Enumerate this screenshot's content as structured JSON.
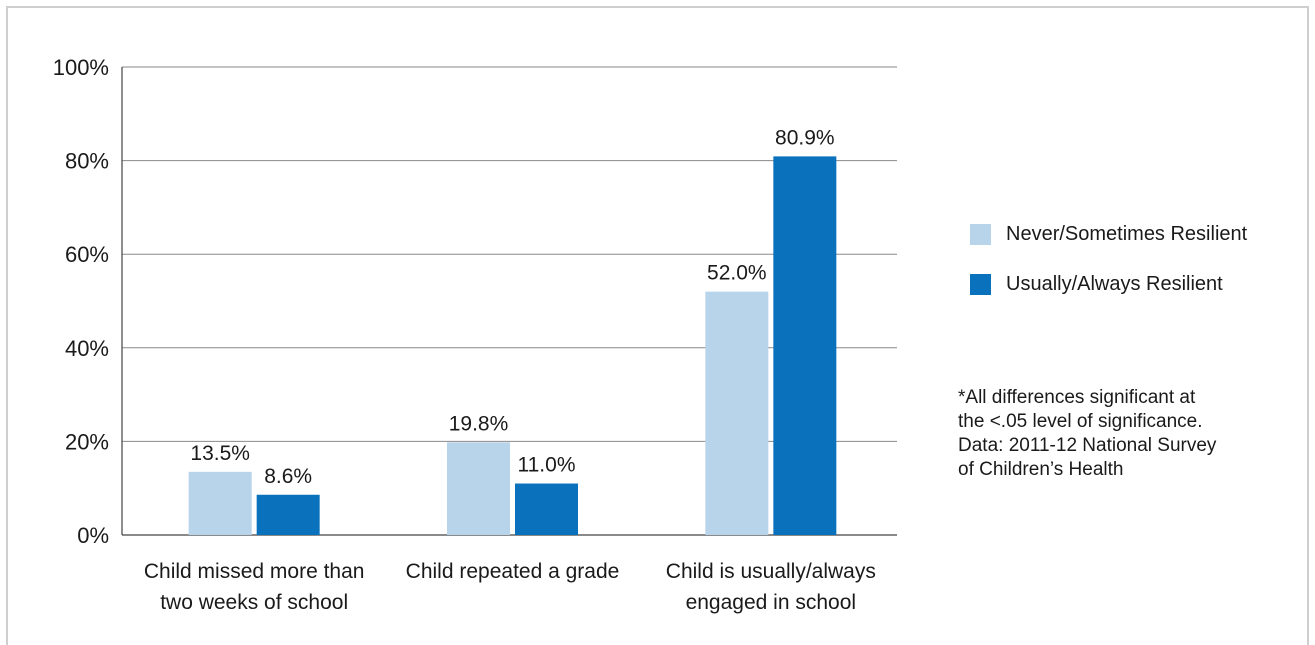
{
  "chart_data": {
    "type": "bar",
    "categories": [
      [
        "Child missed more than",
        "two weeks of school"
      ],
      [
        "Child repeated a grade"
      ],
      [
        "Child is usually/always",
        "engaged in school"
      ]
    ],
    "series": [
      {
        "name": "Never/Sometimes Resilient",
        "values": [
          13.5,
          19.8,
          52.0
        ],
        "labels": [
          "13.5%",
          "19.8%",
          "52.0%"
        ],
        "color": "#b8d4ea"
      },
      {
        "name": "Usually/Always Resilient",
        "values": [
          8.6,
          11.0,
          80.9
        ],
        "labels": [
          "8.6%",
          "11.0%",
          "80.9%"
        ],
        "color": "#0a72bd"
      }
    ],
    "y_ticks": [
      "0%",
      "20%",
      "40%",
      "60%",
      "80%",
      "100%"
    ],
    "ylim": [
      0,
      100
    ],
    "grid": true,
    "legend_position": "right",
    "title": "",
    "xlabel": "",
    "ylabel": ""
  },
  "footnote": {
    "lines": [
      "*All differences significant at",
      "the <.05 level of significance.",
      "Data: 2011-12 National Survey",
      "of Children’s Health"
    ]
  }
}
